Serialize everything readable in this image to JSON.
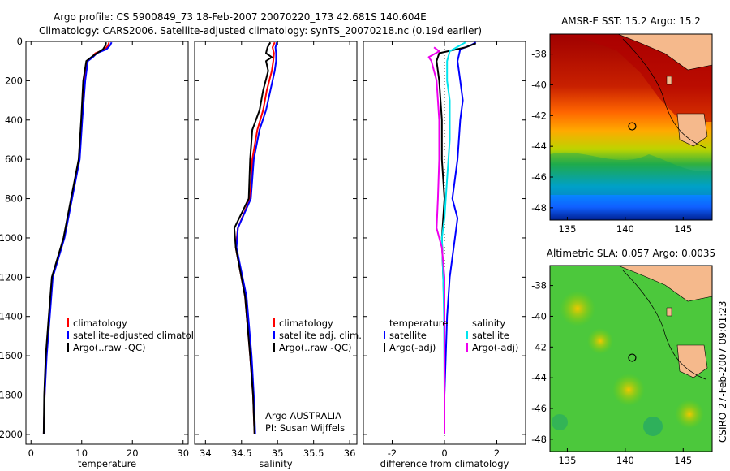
{
  "title": {
    "line1": "Argo profile: CS 5900849_73 18-Feb-2007 20070220_173 42.681S 140.604E",
    "line2": "Climatology: CARS2006. Satellite-adjusted climatology: synTS_20070218.nc (0.19d earlier)"
  },
  "colors": {
    "climatology": "#ff0000",
    "satellite": "#0000ff",
    "argo": "#000000",
    "sat_diff": "#00e5ee",
    "argo_adj": "#ee00ee"
  },
  "chart_data": [
    {
      "type": "line",
      "id": "temperature",
      "xlabel": "temperature",
      "xlim": [
        -1,
        31
      ],
      "xticks": [
        "0",
        "10",
        "20",
        "30"
      ],
      "xtick_values": [
        0,
        10,
        20,
        30
      ],
      "ylim": [
        2050,
        0
      ],
      "yticks": [
        "0",
        "200",
        "400",
        "600",
        "800",
        "1000",
        "1200",
        "1400",
        "1600",
        "1800",
        "2000"
      ],
      "ytick_values": [
        0,
        200,
        400,
        600,
        800,
        1000,
        1200,
        1400,
        1600,
        1800,
        2000
      ],
      "legend": [
        "climatology",
        "satellite-adjusted climatology",
        "Argo(..raw -QC)"
      ],
      "series": [
        {
          "name": "climatology",
          "color": "#ff0000",
          "points": [
            [
              15.4,
              5
            ],
            [
              15.2,
              20
            ],
            [
              14.6,
              40
            ],
            [
              12.7,
              60
            ],
            [
              12.0,
              80
            ],
            [
              11.0,
              100
            ],
            [
              10.5,
              200
            ],
            [
              10.0,
              400
            ],
            [
              9.5,
              600
            ],
            [
              8.0,
              800
            ],
            [
              6.5,
              1000
            ],
            [
              4.2,
              1200
            ],
            [
              3.6,
              1400
            ],
            [
              3.0,
              1600
            ],
            [
              2.7,
              1800
            ],
            [
              2.5,
              2000
            ]
          ]
        },
        {
          "name": "satellite-adjusted climatology",
          "color": "#0000ff",
          "points": [
            [
              15.9,
              5
            ],
            [
              15.6,
              20
            ],
            [
              14.9,
              40
            ],
            [
              13.0,
              60
            ],
            [
              12.2,
              80
            ],
            [
              11.2,
              100
            ],
            [
              10.7,
              200
            ],
            [
              10.1,
              400
            ],
            [
              9.6,
              600
            ],
            [
              8.1,
              800
            ],
            [
              6.6,
              1000
            ],
            [
              4.3,
              1200
            ],
            [
              3.7,
              1400
            ],
            [
              3.1,
              1600
            ],
            [
              2.7,
              1800
            ],
            [
              2.5,
              2000
            ]
          ]
        },
        {
          "name": "Argo(..raw -QC)",
          "color": "#000000",
          "points": [
            [
              14.8,
              5
            ],
            [
              14.7,
              20
            ],
            [
              14.2,
              40
            ],
            [
              13.0,
              60
            ],
            [
              11.9,
              80
            ],
            [
              10.9,
              100
            ],
            [
              10.3,
              200
            ],
            [
              9.9,
              400
            ],
            [
              9.4,
              600
            ],
            [
              7.9,
              800
            ],
            [
              6.4,
              1000
            ],
            [
              4.1,
              1200
            ],
            [
              3.5,
              1400
            ],
            [
              2.9,
              1600
            ],
            [
              2.6,
              1800
            ],
            [
              2.5,
              2000
            ]
          ]
        }
      ]
    },
    {
      "type": "line",
      "id": "salinity",
      "xlabel": "salinity",
      "xlim": [
        33.85,
        36.1
      ],
      "xticks": [
        "34",
        "34.5",
        "35",
        "35.5",
        "36"
      ],
      "xtick_values": [
        34,
        34.5,
        35,
        35.5,
        36
      ],
      "ylim": [
        2050,
        0
      ],
      "legend": [
        "climatology",
        "satellite adj. clim.",
        "Argo(..raw -QC)"
      ],
      "annotation": [
        "Argo AUSTRALIA",
        "PI: Susan Wijffels"
      ],
      "series": [
        {
          "name": "climatology",
          "color": "#ff0000",
          "points": [
            [
              34.96,
              5
            ],
            [
              34.93,
              30
            ],
            [
              34.95,
              60
            ],
            [
              34.94,
              100
            ],
            [
              34.92,
              150
            ],
            [
              34.85,
              250
            ],
            [
              34.8,
              350
            ],
            [
              34.72,
              450
            ],
            [
              34.65,
              600
            ],
            [
              34.62,
              800
            ],
            [
              34.45,
              950
            ],
            [
              34.42,
              1050
            ],
            [
              34.55,
              1300
            ],
            [
              34.62,
              1600
            ],
            [
              34.66,
              1800
            ],
            [
              34.68,
              2000
            ]
          ]
        },
        {
          "name": "satellite adj. clim.",
          "color": "#0000ff",
          "points": [
            [
              34.99,
              5
            ],
            [
              34.97,
              30
            ],
            [
              34.98,
              60
            ],
            [
              34.98,
              100
            ],
            [
              34.96,
              150
            ],
            [
              34.9,
              250
            ],
            [
              34.84,
              350
            ],
            [
              34.75,
              450
            ],
            [
              34.67,
              600
            ],
            [
              34.63,
              800
            ],
            [
              34.45,
              950
            ],
            [
              34.43,
              1050
            ],
            [
              34.57,
              1300
            ],
            [
              34.64,
              1600
            ],
            [
              34.67,
              1800
            ],
            [
              34.69,
              2000
            ]
          ]
        },
        {
          "name": "Argo(..raw -QC)",
          "color": "#000000",
          "points": [
            [
              34.9,
              5
            ],
            [
              34.86,
              30
            ],
            [
              34.84,
              60
            ],
            [
              34.92,
              80
            ],
            [
              34.84,
              100
            ],
            [
              34.87,
              150
            ],
            [
              34.8,
              250
            ],
            [
              34.75,
              350
            ],
            [
              34.65,
              450
            ],
            [
              34.62,
              600
            ],
            [
              34.6,
              800
            ],
            [
              34.4,
              950
            ],
            [
              34.42,
              1050
            ],
            [
              34.55,
              1300
            ],
            [
              34.62,
              1600
            ],
            [
              34.66,
              1800
            ],
            [
              34.68,
              2000
            ]
          ]
        }
      ]
    },
    {
      "type": "line",
      "id": "difference",
      "xlabel": "difference from climatology",
      "xlim": [
        -3.1,
        3.1
      ],
      "xticks": [
        "-2",
        "0",
        "2"
      ],
      "xtick_values": [
        -2,
        0,
        2
      ],
      "ylim": [
        2050,
        0
      ],
      "legend_titles": [
        "temperature",
        "salinity"
      ],
      "legend": [
        "satellite",
        "Argo(-adj)",
        "satellite",
        "Argo(-adj)"
      ],
      "series": [
        {
          "name": "temperature satellite",
          "color": "#0000ff",
          "points": [
            [
              1.2,
              5
            ],
            [
              1.0,
              20
            ],
            [
              0.6,
              40
            ],
            [
              0.5,
              100
            ],
            [
              0.6,
              200
            ],
            [
              0.7,
              300
            ],
            [
              0.6,
              400
            ],
            [
              0.5,
              600
            ],
            [
              0.3,
              800
            ],
            [
              0.5,
              900
            ],
            [
              0.4,
              1000
            ],
            [
              0.2,
              1200
            ],
            [
              0.1,
              1400
            ],
            [
              0.05,
              1600
            ],
            [
              0.0,
              1800
            ],
            [
              0.0,
              2000
            ]
          ]
        },
        {
          "name": "temperature Argo(-adj)",
          "color": "#000000",
          "points": [
            [
              1.2,
              10
            ],
            [
              0.8,
              30
            ],
            [
              -0.2,
              60
            ],
            [
              -0.3,
              100
            ],
            [
              -0.2,
              200
            ],
            [
              -0.1,
              400
            ],
            [
              -0.1,
              600
            ],
            [
              0.0,
              800
            ],
            [
              -0.1,
              1000
            ],
            [
              -0.05,
              1200
            ],
            [
              0.0,
              1400
            ],
            [
              0.0,
              1600
            ],
            [
              0.0,
              1800
            ],
            [
              0.0,
              2000
            ]
          ]
        },
        {
          "name": "salinity satellite",
          "color": "#00e5ee",
          "points": [
            [
              0.8,
              5
            ],
            [
              0.6,
              20
            ],
            [
              0.2,
              50
            ],
            [
              0.1,
              100
            ],
            [
              0.1,
              200
            ],
            [
              0.2,
              300
            ],
            [
              0.2,
              500
            ],
            [
              0.1,
              700
            ],
            [
              0.0,
              900
            ],
            [
              -0.1,
              1000
            ],
            [
              -0.05,
              1200
            ],
            [
              -0.02,
              1400
            ],
            [
              -0.01,
              1600
            ],
            [
              0.0,
              1800
            ],
            [
              0.0,
              2000
            ]
          ]
        },
        {
          "name": "salinity Argo(-adj)",
          "color": "#ee00ee",
          "points": [
            [
              -0.4,
              30
            ],
            [
              -0.2,
              50
            ],
            [
              -0.6,
              80
            ],
            [
              -0.5,
              100
            ],
            [
              -0.3,
              200
            ],
            [
              -0.2,
              400
            ],
            [
              -0.2,
              600
            ],
            [
              -0.25,
              800
            ],
            [
              -0.3,
              950
            ],
            [
              -0.1,
              1050
            ],
            [
              0.0,
              1200
            ],
            [
              0.0,
              1500
            ],
            [
              0.0,
              1800
            ],
            [
              0.0,
              2000
            ]
          ]
        }
      ]
    }
  ],
  "maps": [
    {
      "id": "sst",
      "title": "AMSR-E SST: 15.2 Argo: 15.2",
      "xlim": [
        133.5,
        147.5
      ],
      "ylim": [
        -48.8,
        -36.7
      ],
      "xticks": [
        "135",
        "140",
        "145"
      ],
      "xtick_values": [
        135,
        140,
        145
      ],
      "yticks": [
        "-38",
        "-40",
        "-42",
        "-44",
        "-46",
        "-48"
      ],
      "ytick_values": [
        -38,
        -40,
        -42,
        -44,
        -46,
        -48
      ],
      "marker": [
        140.6,
        -42.7
      ]
    },
    {
      "id": "sla",
      "title": "Altimetric SLA: 0.057 Argo: 0.0035",
      "xlim": [
        133.5,
        147.5
      ],
      "ylim": [
        -48.8,
        -36.7
      ],
      "xticks": [
        "135",
        "140",
        "145"
      ],
      "xtick_values": [
        135,
        140,
        145
      ],
      "yticks": [
        "-38",
        "-40",
        "-42",
        "-44",
        "-46",
        "-48"
      ],
      "ytick_values": [
        -38,
        -40,
        -42,
        -44,
        -46,
        -48
      ],
      "marker": [
        140.6,
        -42.7
      ]
    }
  ],
  "footer_stamp": "CSIRO 27-Feb-2007 09:01:23"
}
